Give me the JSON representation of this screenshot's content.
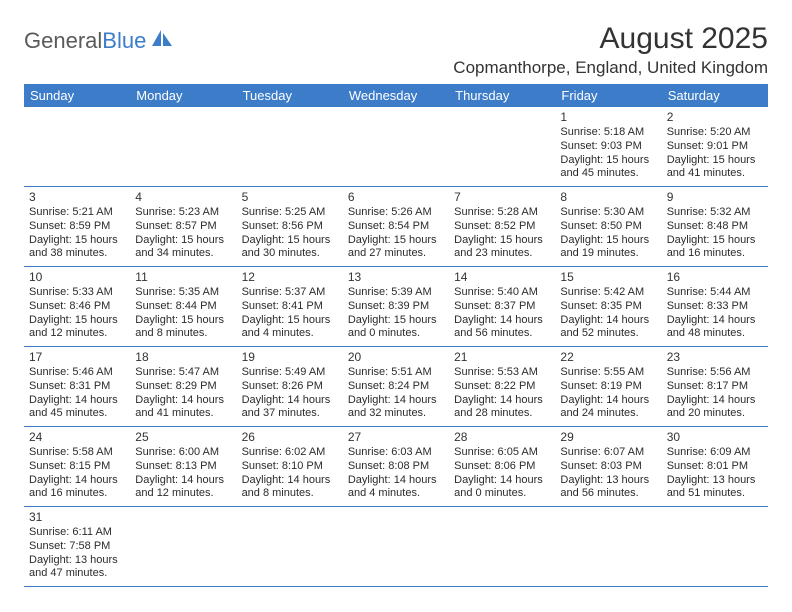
{
  "logo": {
    "text1": "General",
    "text2": "Blue"
  },
  "title": "August 2025",
  "location": "Copmanthorpe, England, United Kingdom",
  "colors": {
    "header_bg": "#3d7cc9",
    "header_fg": "#ffffff",
    "grid_line": "#3d7cc9",
    "text": "#2b2b2b",
    "title_text": "#333333"
  },
  "day_headers": [
    "Sunday",
    "Monday",
    "Tuesday",
    "Wednesday",
    "Thursday",
    "Friday",
    "Saturday"
  ],
  "weeks": [
    [
      null,
      null,
      null,
      null,
      null,
      {
        "n": "1",
        "sr": "Sunrise: 5:18 AM",
        "ss": "Sunset: 9:03 PM",
        "dl": "Daylight: 15 hours and 45 minutes."
      },
      {
        "n": "2",
        "sr": "Sunrise: 5:20 AM",
        "ss": "Sunset: 9:01 PM",
        "dl": "Daylight: 15 hours and 41 minutes."
      }
    ],
    [
      {
        "n": "3",
        "sr": "Sunrise: 5:21 AM",
        "ss": "Sunset: 8:59 PM",
        "dl": "Daylight: 15 hours and 38 minutes."
      },
      {
        "n": "4",
        "sr": "Sunrise: 5:23 AM",
        "ss": "Sunset: 8:57 PM",
        "dl": "Daylight: 15 hours and 34 minutes."
      },
      {
        "n": "5",
        "sr": "Sunrise: 5:25 AM",
        "ss": "Sunset: 8:56 PM",
        "dl": "Daylight: 15 hours and 30 minutes."
      },
      {
        "n": "6",
        "sr": "Sunrise: 5:26 AM",
        "ss": "Sunset: 8:54 PM",
        "dl": "Daylight: 15 hours and 27 minutes."
      },
      {
        "n": "7",
        "sr": "Sunrise: 5:28 AM",
        "ss": "Sunset: 8:52 PM",
        "dl": "Daylight: 15 hours and 23 minutes."
      },
      {
        "n": "8",
        "sr": "Sunrise: 5:30 AM",
        "ss": "Sunset: 8:50 PM",
        "dl": "Daylight: 15 hours and 19 minutes."
      },
      {
        "n": "9",
        "sr": "Sunrise: 5:32 AM",
        "ss": "Sunset: 8:48 PM",
        "dl": "Daylight: 15 hours and 16 minutes."
      }
    ],
    [
      {
        "n": "10",
        "sr": "Sunrise: 5:33 AM",
        "ss": "Sunset: 8:46 PM",
        "dl": "Daylight: 15 hours and 12 minutes."
      },
      {
        "n": "11",
        "sr": "Sunrise: 5:35 AM",
        "ss": "Sunset: 8:44 PM",
        "dl": "Daylight: 15 hours and 8 minutes."
      },
      {
        "n": "12",
        "sr": "Sunrise: 5:37 AM",
        "ss": "Sunset: 8:41 PM",
        "dl": "Daylight: 15 hours and 4 minutes."
      },
      {
        "n": "13",
        "sr": "Sunrise: 5:39 AM",
        "ss": "Sunset: 8:39 PM",
        "dl": "Daylight: 15 hours and 0 minutes."
      },
      {
        "n": "14",
        "sr": "Sunrise: 5:40 AM",
        "ss": "Sunset: 8:37 PM",
        "dl": "Daylight: 14 hours and 56 minutes."
      },
      {
        "n": "15",
        "sr": "Sunrise: 5:42 AM",
        "ss": "Sunset: 8:35 PM",
        "dl": "Daylight: 14 hours and 52 minutes."
      },
      {
        "n": "16",
        "sr": "Sunrise: 5:44 AM",
        "ss": "Sunset: 8:33 PM",
        "dl": "Daylight: 14 hours and 48 minutes."
      }
    ],
    [
      {
        "n": "17",
        "sr": "Sunrise: 5:46 AM",
        "ss": "Sunset: 8:31 PM",
        "dl": "Daylight: 14 hours and 45 minutes."
      },
      {
        "n": "18",
        "sr": "Sunrise: 5:47 AM",
        "ss": "Sunset: 8:29 PM",
        "dl": "Daylight: 14 hours and 41 minutes."
      },
      {
        "n": "19",
        "sr": "Sunrise: 5:49 AM",
        "ss": "Sunset: 8:26 PM",
        "dl": "Daylight: 14 hours and 37 minutes."
      },
      {
        "n": "20",
        "sr": "Sunrise: 5:51 AM",
        "ss": "Sunset: 8:24 PM",
        "dl": "Daylight: 14 hours and 32 minutes."
      },
      {
        "n": "21",
        "sr": "Sunrise: 5:53 AM",
        "ss": "Sunset: 8:22 PM",
        "dl": "Daylight: 14 hours and 28 minutes."
      },
      {
        "n": "22",
        "sr": "Sunrise: 5:55 AM",
        "ss": "Sunset: 8:19 PM",
        "dl": "Daylight: 14 hours and 24 minutes."
      },
      {
        "n": "23",
        "sr": "Sunrise: 5:56 AM",
        "ss": "Sunset: 8:17 PM",
        "dl": "Daylight: 14 hours and 20 minutes."
      }
    ],
    [
      {
        "n": "24",
        "sr": "Sunrise: 5:58 AM",
        "ss": "Sunset: 8:15 PM",
        "dl": "Daylight: 14 hours and 16 minutes."
      },
      {
        "n": "25",
        "sr": "Sunrise: 6:00 AM",
        "ss": "Sunset: 8:13 PM",
        "dl": "Daylight: 14 hours and 12 minutes."
      },
      {
        "n": "26",
        "sr": "Sunrise: 6:02 AM",
        "ss": "Sunset: 8:10 PM",
        "dl": "Daylight: 14 hours and 8 minutes."
      },
      {
        "n": "27",
        "sr": "Sunrise: 6:03 AM",
        "ss": "Sunset: 8:08 PM",
        "dl": "Daylight: 14 hours and 4 minutes."
      },
      {
        "n": "28",
        "sr": "Sunrise: 6:05 AM",
        "ss": "Sunset: 8:06 PM",
        "dl": "Daylight: 14 hours and 0 minutes."
      },
      {
        "n": "29",
        "sr": "Sunrise: 6:07 AM",
        "ss": "Sunset: 8:03 PM",
        "dl": "Daylight: 13 hours and 56 minutes."
      },
      {
        "n": "30",
        "sr": "Sunrise: 6:09 AM",
        "ss": "Sunset: 8:01 PM",
        "dl": "Daylight: 13 hours and 51 minutes."
      }
    ],
    [
      {
        "n": "31",
        "sr": "Sunrise: 6:11 AM",
        "ss": "Sunset: 7:58 PM",
        "dl": "Daylight: 13 hours and 47 minutes."
      },
      null,
      null,
      null,
      null,
      null,
      null
    ]
  ]
}
